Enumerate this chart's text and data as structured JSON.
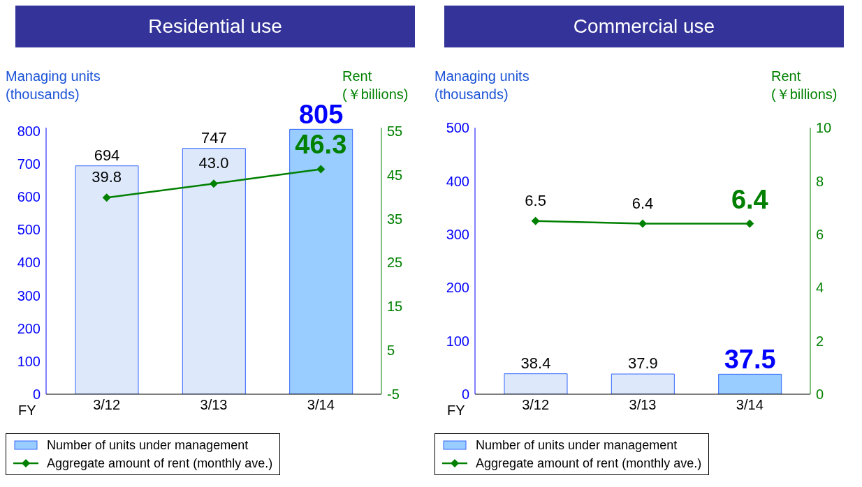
{
  "chart_data": [
    {
      "type": "bar",
      "title": "Residential use",
      "xlabel": "FY",
      "ylabel": "Managing units (thousands)",
      "y2label": "Rent (￥billions)",
      "categories": [
        "3/12",
        "3/13",
        "3/14"
      ],
      "series": [
        {
          "name": "Number of units under management",
          "color": "#99ccff",
          "colors": [
            "#dde9fb",
            "#dde9fb",
            "#99ccff"
          ],
          "values": [
            694,
            747,
            805
          ],
          "value_labels": [
            "694",
            "747",
            "805"
          ]
        },
        {
          "type": "line",
          "name": "Aggregate amount of rent (monthly ave.)",
          "color": "#008000",
          "axis": "y2",
          "marker": "diamond",
          "values": [
            39.8,
            43.0,
            46.3
          ],
          "value_labels": [
            "39.8",
            "43.0",
            "46.3"
          ]
        }
      ],
      "ylim": [
        0,
        810
      ],
      "yticks": [
        0,
        100,
        200,
        300,
        400,
        500,
        600,
        700,
        800
      ],
      "y2lim": [
        -5,
        55.75
      ],
      "y2ticks": [
        -5,
        5,
        15,
        25,
        35,
        45,
        55
      ],
      "grid": false,
      "legend": "bottom"
    },
    {
      "type": "bar",
      "title": "Commercial use",
      "xlabel": "FY",
      "ylabel": "Managing units (thousands)",
      "y2label": "Rent (￥billions)",
      "categories": [
        "3/12",
        "3/13",
        "3/14"
      ],
      "series": [
        {
          "name": "Number of units under management",
          "color": "#99ccff",
          "colors": [
            "#dde9fb",
            "#dde9fb",
            "#99ccff"
          ],
          "values": [
            38.4,
            37.9,
            37.5
          ],
          "value_labels": [
            "38.4",
            "37.9",
            "37.5"
          ]
        },
        {
          "type": "line",
          "name": "Aggregate amount of rent (monthly ave.)",
          "color": "#008000",
          "axis": "y2",
          "marker": "diamond",
          "values": [
            6.5,
            6.4,
            6.4
          ],
          "value_labels": [
            "6.5",
            "6.4",
            "6.4"
          ]
        }
      ],
      "ylim": [
        0,
        500
      ],
      "yticks": [
        0,
        100,
        200,
        300,
        400,
        500
      ],
      "y2lim": [
        0,
        10
      ],
      "y2ticks": [
        0,
        2,
        4,
        6,
        8,
        10
      ],
      "grid": false,
      "legend": "bottom"
    }
  ]
}
